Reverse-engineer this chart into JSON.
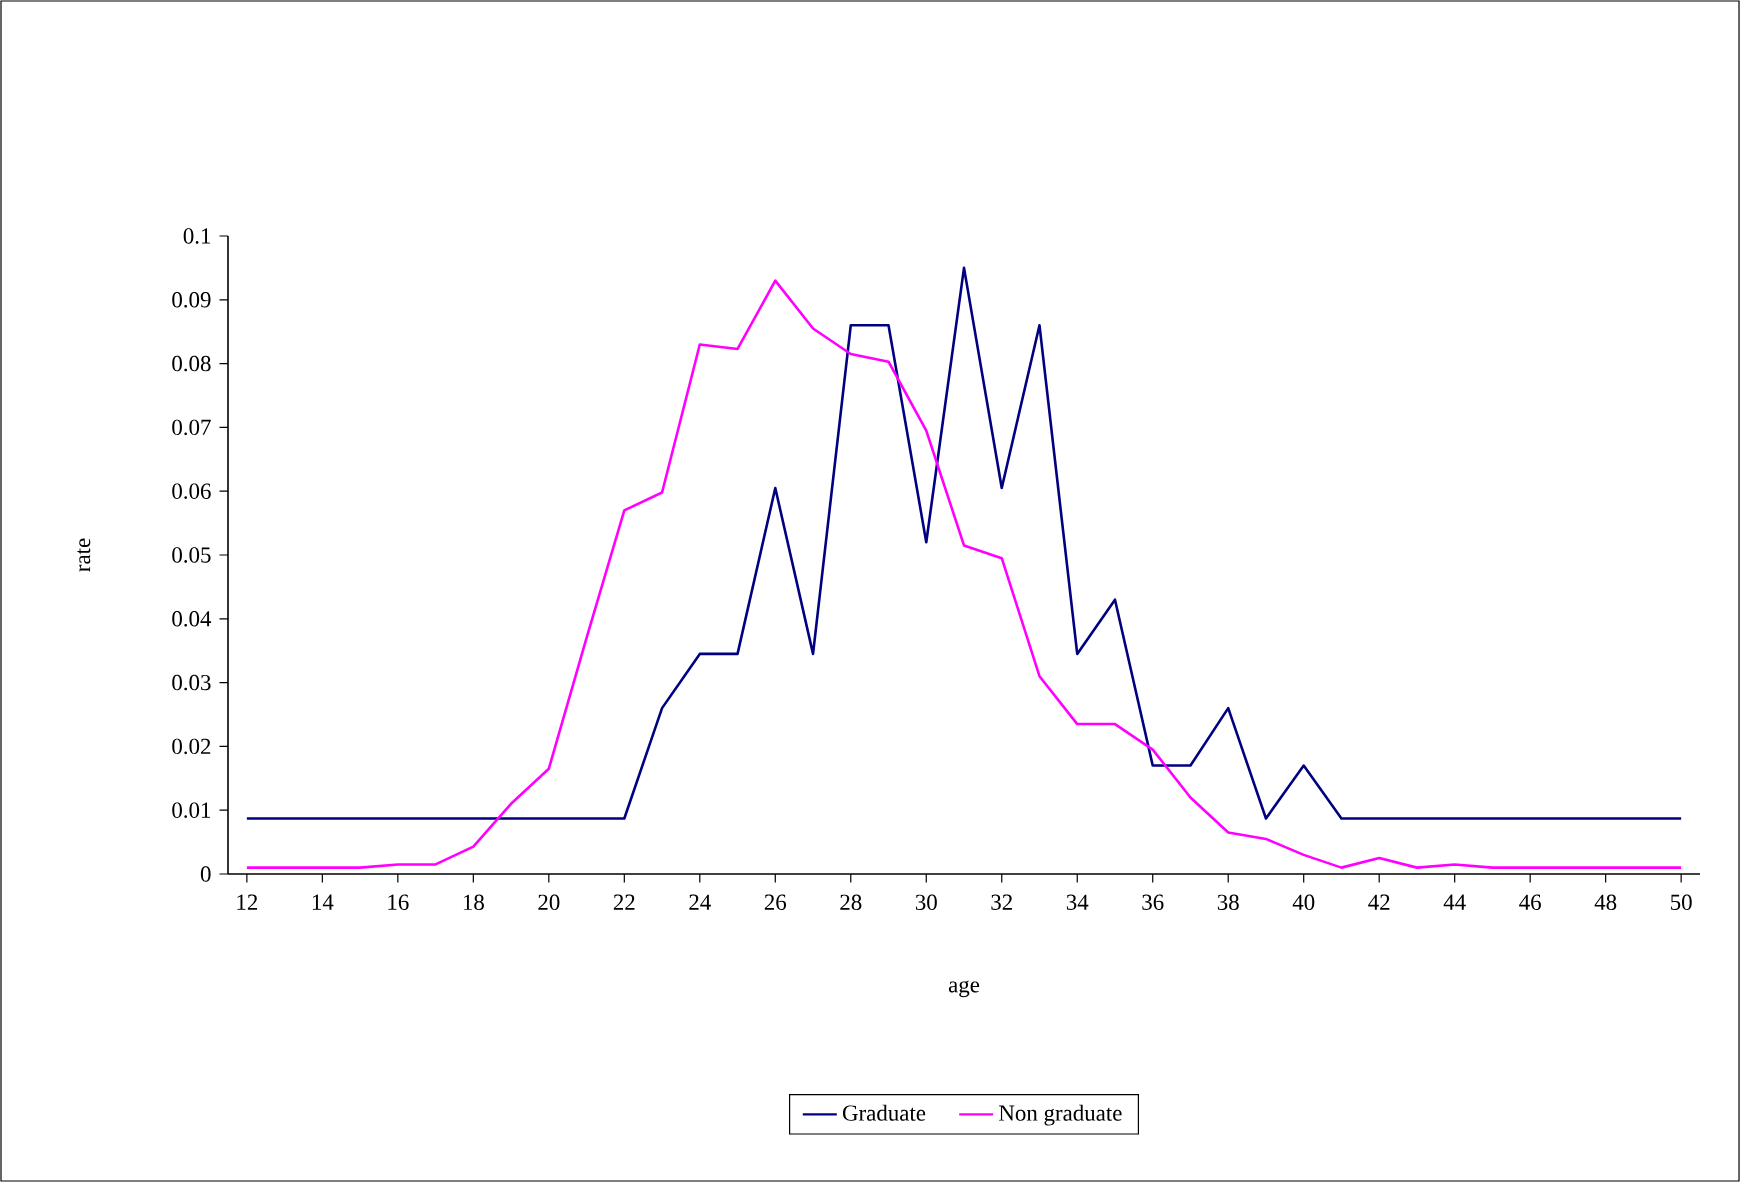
{
  "chart_data": {
    "type": "line",
    "xlabel": "age",
    "ylabel": "rate",
    "x": [
      12,
      13,
      14,
      15,
      16,
      17,
      18,
      19,
      20,
      21,
      22,
      23,
      24,
      25,
      26,
      27,
      28,
      29,
      30,
      31,
      32,
      33,
      34,
      35,
      36,
      37,
      38,
      39,
      40,
      41,
      42,
      43,
      44,
      45,
      46,
      47,
      48,
      49,
      50
    ],
    "series": [
      {
        "name": "Graduate",
        "color": "#000080",
        "values": [
          0.0087,
          0.0087,
          0.0087,
          0.0087,
          0.0087,
          0.0087,
          0.0087,
          0.0087,
          0.0087,
          0.0087,
          0.0087,
          0.026,
          0.0345,
          0.0345,
          0.0605,
          0.0345,
          0.086,
          0.086,
          0.052,
          0.095,
          0.0605,
          0.086,
          0.0345,
          0.043,
          0.017,
          0.017,
          0.026,
          0.0087,
          0.017,
          0.0087,
          0.0087,
          0.0087,
          0.0087,
          0.0087,
          0.0087,
          0.0087,
          0.0087,
          0.0087,
          0.0087
        ]
      },
      {
        "name": "Non graduate",
        "color": "#ff00ff",
        "values": [
          0.001,
          0.001,
          0.001,
          0.001,
          0.0015,
          0.0015,
          0.0043,
          0.011,
          0.0165,
          0.037,
          0.057,
          0.0598,
          0.083,
          0.0823,
          0.093,
          0.0855,
          0.0815,
          0.0803,
          0.0695,
          0.0515,
          0.0495,
          0.031,
          0.0235,
          0.0235,
          0.0195,
          0.012,
          0.0065,
          0.0055,
          0.003,
          0.001,
          0.0025,
          0.001,
          0.0015,
          0.001,
          0.001,
          0.001,
          0.001,
          0.001,
          0.001
        ]
      }
    ],
    "xlim": [
      11.5,
      50.5
    ],
    "xticks": [
      12,
      14,
      16,
      18,
      20,
      22,
      24,
      26,
      28,
      30,
      32,
      34,
      36,
      38,
      40,
      42,
      44,
      46,
      48,
      50
    ],
    "ylim": [
      0,
      0.1
    ],
    "yticks": [
      0,
      0.01,
      0.02,
      0.03,
      0.04,
      0.05,
      0.06,
      0.07,
      0.08,
      0.09,
      0.1
    ],
    "grid": false,
    "legend": "bottom",
    "marker": "none",
    "line_style": "solid"
  }
}
